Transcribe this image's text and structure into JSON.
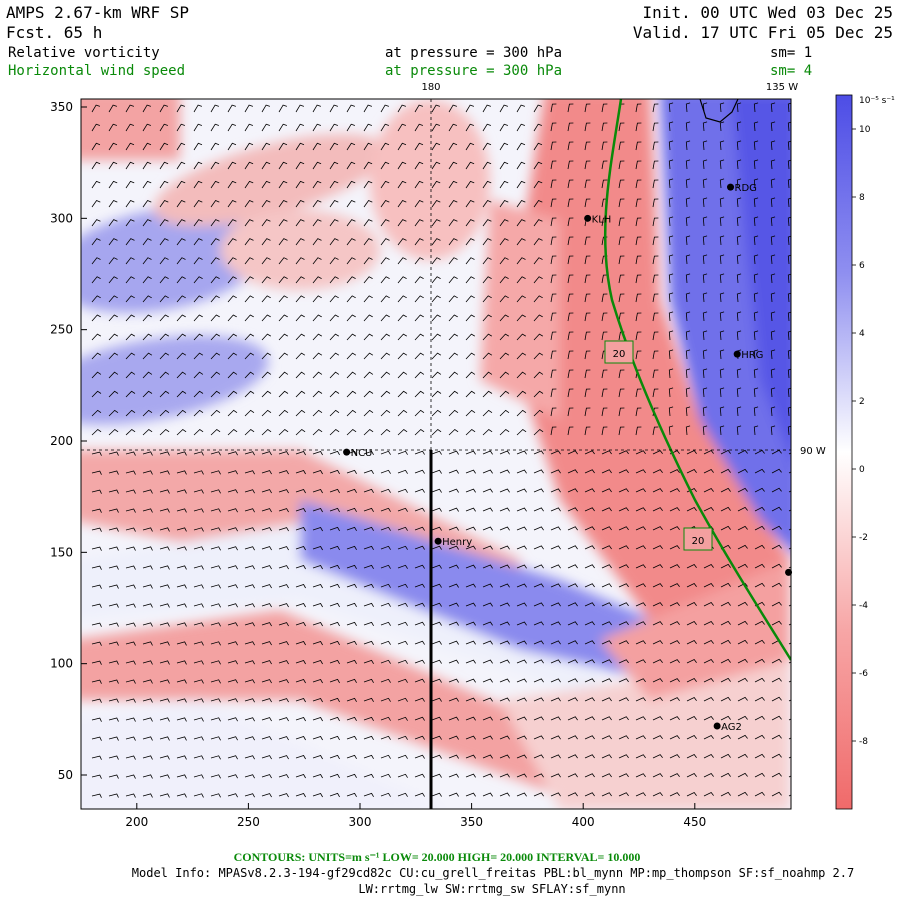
{
  "header": {
    "model": "AMPS 2.67-km WRF SP",
    "fcst": "Fcst.   65 h",
    "init": "Init. 00 UTC Wed 03 Dec 25",
    "valid": "Valid. 17 UTC Fri 05 Dec 25",
    "field1": {
      "name": "Relative vorticity",
      "level": "at pressure =  300 hPa",
      "smooth": "sm= 1"
    },
    "field2": {
      "name": "Horizontal wind speed",
      "level": "at pressure =  300 hPa",
      "smooth": "sm= 4"
    }
  },
  "map": {
    "x_ticks": [
      "200",
      "250",
      "300",
      "350",
      "400",
      "450"
    ],
    "y_ticks": [
      "50",
      "100",
      "150",
      "200",
      "250",
      "300",
      "350"
    ],
    "meridian_180": "180",
    "meridian_135w": "135 W",
    "meridian_90w": "90 W",
    "stations": [
      {
        "name": "RDG",
        "x": 466,
        "y": 314
      },
      {
        "name": "KLH",
        "x": 402,
        "y": 300
      },
      {
        "name": "HRG",
        "x": 469,
        "y": 239
      },
      {
        "name": "NCU",
        "x": 294,
        "y": 195
      },
      {
        "name": "Henry",
        "x": 335,
        "y": 155
      },
      {
        "name": "AG2",
        "x": 460,
        "y": 72
      },
      {
        "name": "",
        "x": 492,
        "y": 141
      }
    ],
    "contour_label_1": "20",
    "contour_label_2": "20",
    "colors": {
      "positive": "#5a5ae8",
      "negative": "#f47a7a",
      "contour": "#0a8a0a"
    }
  },
  "colorbar": {
    "unit_label": "10⁻⁵ s⁻¹",
    "ticks": [
      "10",
      "8",
      "6",
      "4",
      "2",
      "0",
      "-2",
      "-4",
      "-6",
      "-8"
    ]
  },
  "footer": {
    "contours": "CONTOURS:  UNITS=m s⁻¹  LOW=  20.000      HIGH=  20.000      INTERVAL=   10.000",
    "model_info": "Model Info: MPASv8.2.3-194-gf29cd82c CU:cu_grell_freitas PBL:bl_mynn MP:mp_thompson SF:sf_noahmp 2.7",
    "model_info2": "LW:rrtmg_lw SW:rrtmg_sw SFLAY:sf_mynn"
  }
}
